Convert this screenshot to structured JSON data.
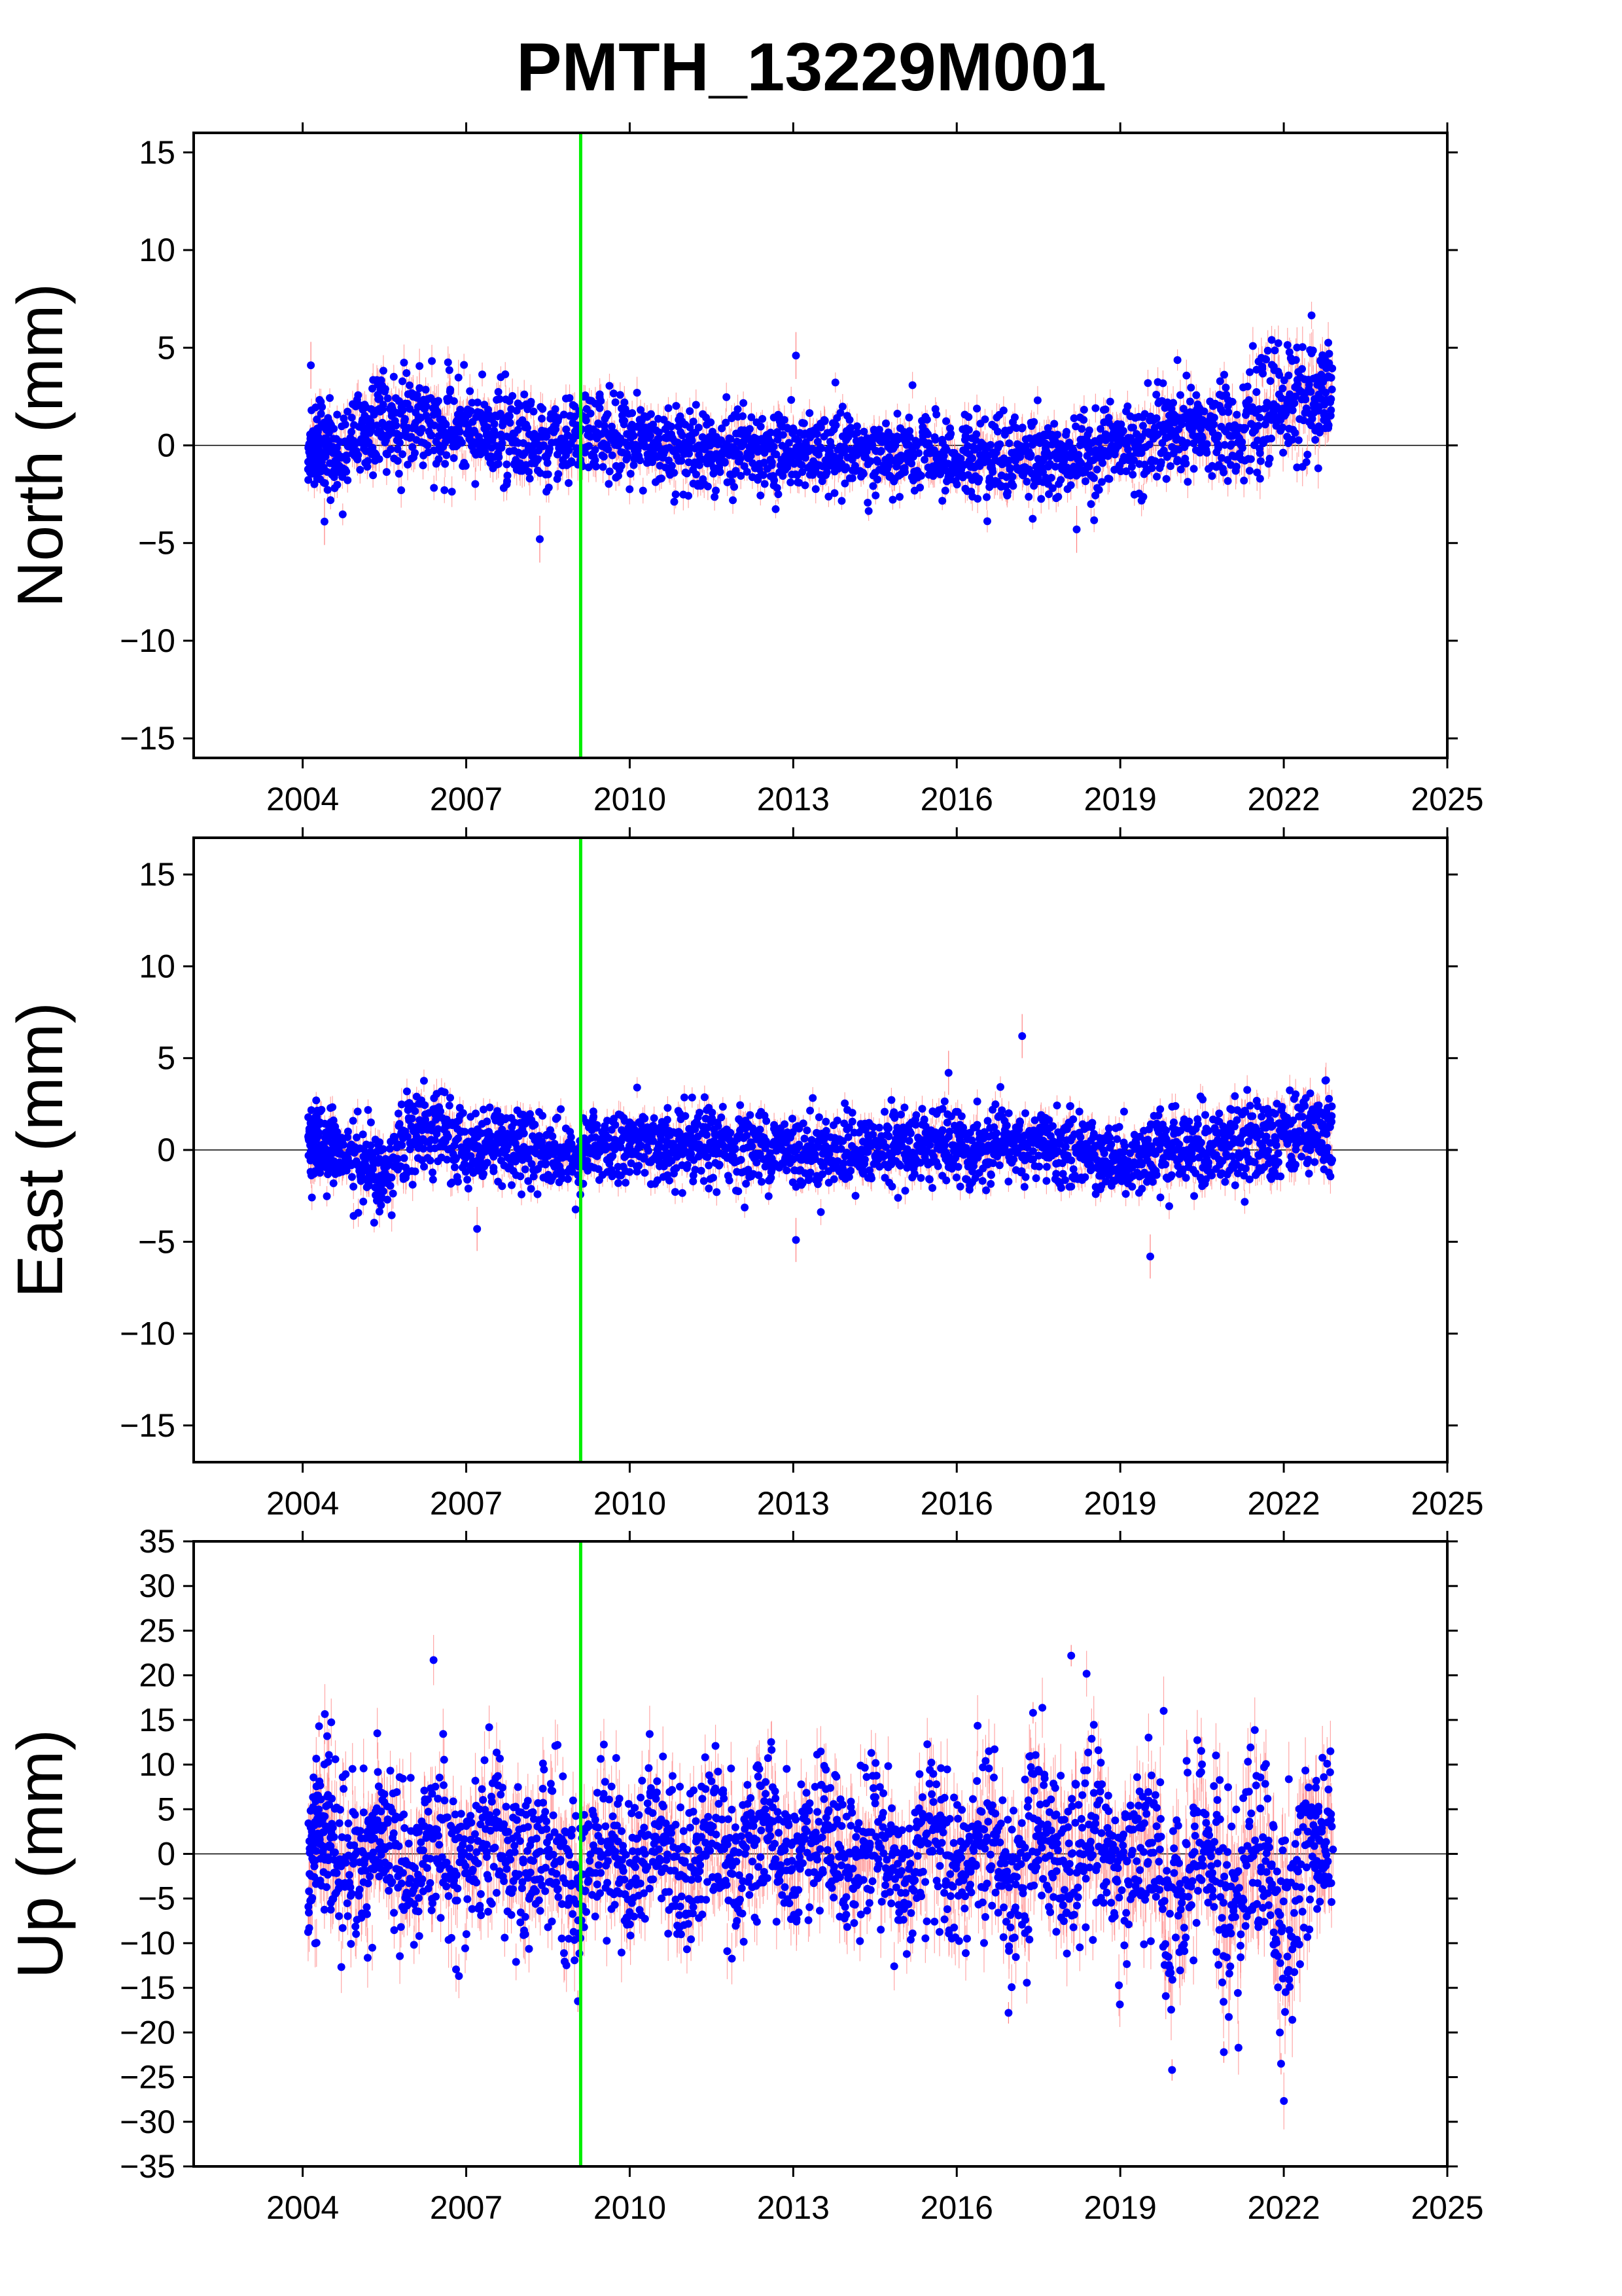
{
  "colors": {
    "point": "#0000ff",
    "error_bar": "#ff8080",
    "event_line": "#00ee00",
    "zero_line": "#000000",
    "frame": "#000000"
  },
  "chart_data": {
    "title": "PMTH_13229M001",
    "type": "scatter",
    "x_unit": "decimal year",
    "xlim": [
      2002.0,
      2025.0
    ],
    "xticks": [
      2004,
      2007,
      2010,
      2013,
      2016,
      2019,
      2022,
      2025
    ],
    "event_marker_x": 2009.1,
    "data_span": [
      2004.1,
      2022.9
    ],
    "panels": [
      {
        "name": "North",
        "ylabel": "North (mm)",
        "ylim": [
          -16,
          16
        ],
        "yticks": [
          -15,
          -10,
          -5,
          0,
          5,
          10,
          15
        ],
        "series": [
          {
            "x": [
              2004.1,
              2004.3,
              2004.6,
              2005.1,
              2005.5,
              2006.0,
              2006.5,
              2007.0,
              2007.5,
              2008.0,
              2008.5,
              2009.0,
              2009.5,
              2010.0,
              2010.5,
              2011.0,
              2011.5,
              2012.0,
              2012.5,
              2013.0,
              2013.5,
              2014.0,
              2014.5,
              2015.0,
              2015.5,
              2016.0,
              2016.5,
              2017.0,
              2017.5,
              2018.0,
              2018.5,
              2019.0,
              2019.5,
              2020.0,
              2020.5,
              2021.0,
              2021.5,
              2022.0,
              2022.5,
              2022.9
            ],
            "y": [
              -0.5,
              0.0,
              -0.3,
              0.8,
              1.0,
              1.2,
              0.9,
              0.6,
              0.5,
              0.5,
              0.2,
              0.1,
              0.6,
              0.4,
              0.2,
              -0.2,
              -0.3,
              0.0,
              -0.2,
              -0.4,
              -0.4,
              -0.3,
              -0.4,
              -0.5,
              -0.5,
              -0.7,
              -0.5,
              -0.6,
              -0.4,
              -0.6,
              -0.4,
              -0.1,
              0.2,
              0.4,
              0.6,
              0.9,
              1.6,
              2.2,
              2.5,
              2.2
            ],
            "spread": [
              1.0,
              1.0,
              1.0,
              1.2,
              1.2,
              1.3,
              1.3,
              1.2,
              1.2,
              1.2,
              1.1,
              1.1,
              1.2,
              1.1,
              1.1,
              1.1,
              1.1,
              1.0,
              1.0,
              1.0,
              1.0,
              1.0,
              1.0,
              1.0,
              1.0,
              1.0,
              1.1,
              1.1,
              1.1,
              1.1,
              1.1,
              1.1,
              1.1,
              1.2,
              1.2,
              1.3,
              1.4,
              1.5,
              1.5,
              1.5
            ]
          }
        ]
      },
      {
        "name": "East",
        "ylabel": "East (mm)",
        "ylim": [
          -17,
          17
        ],
        "yticks": [
          -15,
          -10,
          -5,
          0,
          5,
          10,
          15
        ],
        "series": [
          {
            "x": [
              2004.1,
              2004.3,
              2004.6,
              2005.1,
              2005.5,
              2006.0,
              2006.5,
              2007.0,
              2007.5,
              2008.0,
              2008.5,
              2009.0,
              2009.5,
              2010.0,
              2010.5,
              2011.0,
              2011.5,
              2012.0,
              2012.5,
              2013.0,
              2013.5,
              2014.0,
              2014.5,
              2015.0,
              2015.5,
              2016.0,
              2016.5,
              2017.0,
              2017.5,
              2018.0,
              2018.5,
              2019.0,
              2019.5,
              2020.0,
              2020.5,
              2021.0,
              2021.5,
              2022.0,
              2022.5,
              2022.9
            ],
            "y": [
              0.5,
              0.3,
              0.0,
              -0.8,
              -1.5,
              1.0,
              0.8,
              0.2,
              0.4,
              0.3,
              0.0,
              -0.3,
              0.3,
              0.4,
              0.2,
              0.0,
              0.3,
              0.2,
              0.1,
              0.0,
              0.0,
              -0.2,
              -0.1,
              0.2,
              0.4,
              0.0,
              -0.2,
              0.3,
              0.2,
              0.0,
              -0.2,
              -0.5,
              -0.3,
              -0.1,
              0.1,
              0.3,
              0.6,
              1.2,
              1.0,
              0.8
            ],
            "spread": [
              1.0,
              1.0,
              1.0,
              1.1,
              1.2,
              1.2,
              1.1,
              1.0,
              1.0,
              1.0,
              1.0,
              1.0,
              1.0,
              1.0,
              1.0,
              1.0,
              1.0,
              1.0,
              1.0,
              1.0,
              1.0,
              1.0,
              1.0,
              1.0,
              1.0,
              1.0,
              1.0,
              1.0,
              1.0,
              1.0,
              1.0,
              1.0,
              1.0,
              1.0,
              1.1,
              1.1,
              1.2,
              1.3,
              1.3,
              1.3
            ]
          }
        ]
      },
      {
        "name": "Up",
        "ylabel": "Up (mm)",
        "ylim": [
          -35,
          35
        ],
        "yticks": [
          -35,
          -30,
          -25,
          -20,
          -15,
          -10,
          -5,
          0,
          5,
          10,
          15,
          20,
          25,
          30,
          35
        ],
        "series": [
          {
            "x": [
              2004.1,
              2004.3,
              2004.6,
              2005.1,
              2005.5,
              2006.0,
              2006.5,
              2007.0,
              2007.5,
              2008.0,
              2008.5,
              2009.0,
              2009.5,
              2010.0,
              2010.5,
              2011.0,
              2011.5,
              2012.0,
              2012.5,
              2013.0,
              2013.5,
              2014.0,
              2014.5,
              2015.0,
              2015.5,
              2016.0,
              2016.5,
              2017.0,
              2017.5,
              2018.0,
              2018.5,
              2019.0,
              2019.5,
              2020.0,
              2020.5,
              2021.0,
              2021.5,
              2022.0,
              2022.5,
              2022.9
            ],
            "y": [
              -2.0,
              3.0,
              0.0,
              -1.0,
              2.0,
              -3.0,
              3.0,
              -2.0,
              3.0,
              -3.0,
              2.0,
              -4.0,
              2.0,
              -2.0,
              3.0,
              -3.0,
              3.0,
              -2.0,
              3.0,
              -2.0,
              2.0,
              -2.0,
              3.0,
              -3.0,
              3.0,
              -2.0,
              3.0,
              -3.0,
              3.0,
              -2.0,
              3.0,
              -2.0,
              2.0,
              -8.0,
              3.0,
              -6.0,
              2.0,
              -8.0,
              2.0,
              1.0
            ],
            "spread": [
              4.5,
              4.5,
              4.5,
              4.5,
              4.5,
              4.5,
              4.5,
              4.5,
              4.5,
              4.5,
              4.5,
              4.8,
              4.5,
              4.5,
              4.5,
              4.5,
              4.5,
              4.5,
              4.5,
              4.5,
              4.5,
              4.5,
              4.5,
              4.5,
              4.8,
              4.8,
              4.8,
              5.0,
              5.0,
              5.0,
              5.0,
              5.0,
              5.2,
              6.0,
              5.5,
              6.0,
              5.5,
              6.5,
              5.5,
              5.0
            ]
          }
        ]
      }
    ],
    "notable_points": [
      {
        "panel": "North",
        "x": 2004.15,
        "y": 4.1
      },
      {
        "panel": "North",
        "x": 2013.05,
        "y": 4.6
      },
      {
        "panel": "North",
        "x": 2008.35,
        "y": -4.8
      },
      {
        "panel": "North",
        "x": 2004.4,
        "y": -3.9
      },
      {
        "panel": "North",
        "x": 2018.2,
        "y": -4.3
      },
      {
        "panel": "East",
        "x": 2017.2,
        "y": 6.2
      },
      {
        "panel": "East",
        "x": 2015.85,
        "y": 4.2
      },
      {
        "panel": "East",
        "x": 2013.05,
        "y": -4.9
      },
      {
        "panel": "East",
        "x": 2019.55,
        "y": -5.8
      },
      {
        "panel": "East",
        "x": 2007.2,
        "y": -4.3
      },
      {
        "panel": "Up",
        "x": 2018.1,
        "y": 22.2
      },
      {
        "panel": "Up",
        "x": 2017.4,
        "y": 15.8
      },
      {
        "panel": "Up",
        "x": 2004.3,
        "y": 14.3
      },
      {
        "panel": "Up",
        "x": 2019.95,
        "y": -24.2
      },
      {
        "panel": "Up",
        "x": 2021.95,
        "y": -23.5
      },
      {
        "panel": "Up",
        "x": 2020.9,
        "y": -22.2
      },
      {
        "panel": "Up",
        "x": 2009.05,
        "y": -16.5
      },
      {
        "panel": "Up",
        "x": 2016.95,
        "y": -17.8
      }
    ]
  }
}
